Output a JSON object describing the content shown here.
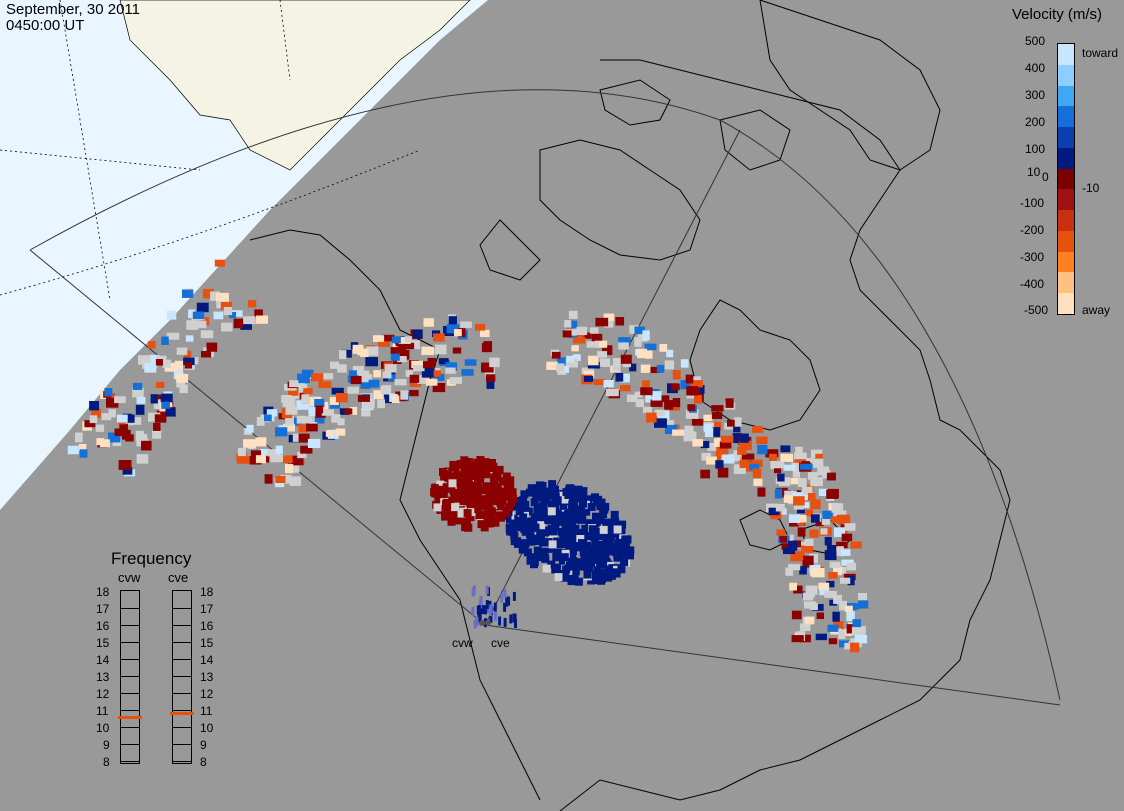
{
  "header": {
    "date": "September, 30 2011",
    "time": "0450:00 UT"
  },
  "legend": {
    "title": "Velocity (m/s)",
    "ticks": [
      "500",
      "400",
      "300",
      "200",
      "100",
      "10",
      "0",
      "-10",
      "-100",
      "-200",
      "-300",
      "-400",
      "-500"
    ],
    "toward_label": "toward",
    "away_label": "away",
    "colors": [
      "#c8e6ff",
      "#8ccfff",
      "#40a8f0",
      "#1470d8",
      "#0a3fb0",
      "#001a80",
      "#7a0000",
      "#a01010",
      "#c83010",
      "#e85010",
      "#ff8020",
      "#ffc080",
      "#ffe0c0"
    ]
  },
  "frequency": {
    "title": "Frequency",
    "radars": [
      "cvw",
      "cve"
    ],
    "levels": [
      "18",
      "17",
      "16",
      "15",
      "14",
      "13",
      "12",
      "11",
      "10",
      "9",
      "8"
    ],
    "cvw_mhz": 10.6,
    "cve_mhz": 10.8,
    "marker_color": "#e85010"
  },
  "radar_labels": [
    "cvw",
    "cve"
  ],
  "colors": {
    "background": "#999999",
    "daylight": "#eaf6ff",
    "land_day": "#f5f4e4",
    "grey_scatter": "#d0d0d0",
    "dark_blue": "#001a80",
    "dark_red": "#8b0000"
  }
}
